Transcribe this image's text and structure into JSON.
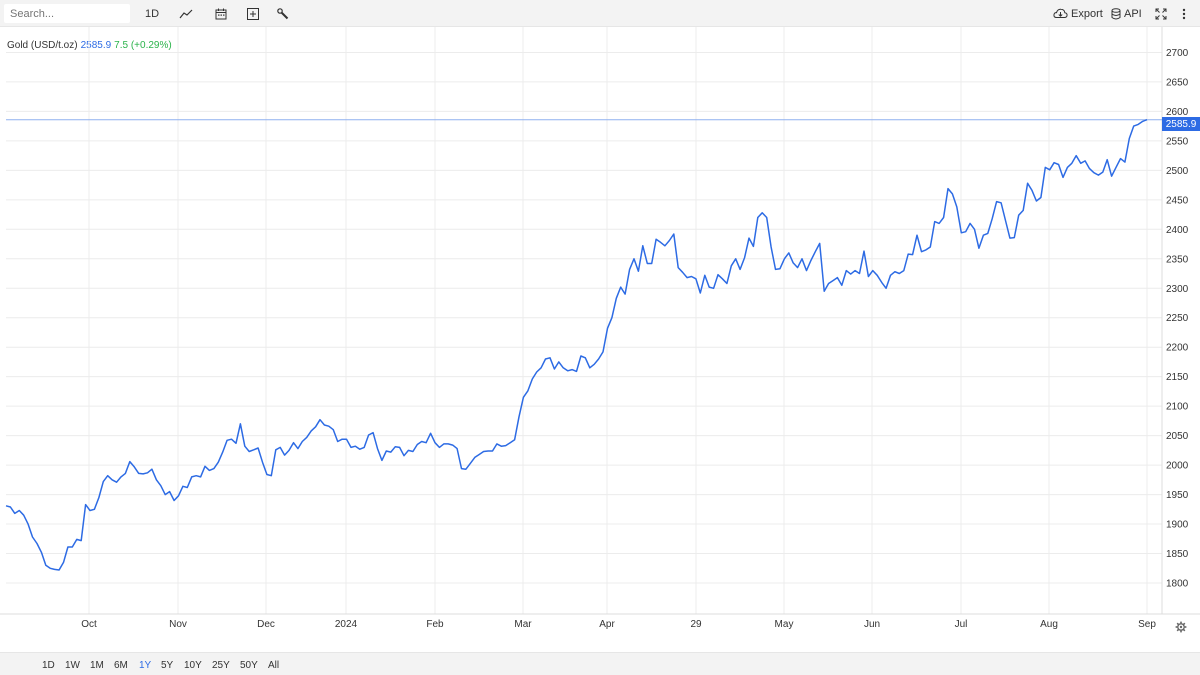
{
  "toolbar": {
    "search_placeholder": "Search...",
    "interval_label": "1D",
    "export_label": "Export",
    "api_label": "API",
    "icons": [
      "line-chart-icon",
      "calendar-icon",
      "add-indicator-icon",
      "wrench-icon",
      "cloud-download-icon",
      "database-icon",
      "fullscreen-icon",
      "more-vertical-icon"
    ]
  },
  "legend": {
    "name": "Gold (USD/t.oz)",
    "price": "2585.9",
    "change": "7.5 (+0.29%)"
  },
  "price_tag": "2585.9",
  "ranges": [
    {
      "label": "1D",
      "active": false
    },
    {
      "label": "1W",
      "active": false
    },
    {
      "label": "1M",
      "active": false
    },
    {
      "label": "6M",
      "active": false
    },
    {
      "label": "1Y",
      "active": true
    },
    {
      "label": "5Y",
      "active": false
    },
    {
      "label": "10Y",
      "active": false
    },
    {
      "label": "25Y",
      "active": false
    },
    {
      "label": "50Y",
      "active": false
    },
    {
      "label": "All",
      "active": false
    }
  ],
  "colors": {
    "line": "#2d6be4",
    "positive": "#2bb34b",
    "accent": "#2d6be4",
    "grid": "#ececec"
  },
  "chart_data": {
    "type": "line",
    "title": "Gold (USD/t.oz)",
    "ylim": [
      1770,
      2720
    ],
    "y_ticks": [
      1800,
      1850,
      1900,
      1950,
      2000,
      2050,
      2100,
      2150,
      2200,
      2250,
      2300,
      2350,
      2400,
      2450,
      2500,
      2550,
      2600,
      2650,
      2700
    ],
    "x_tick_labels": [
      "Oct",
      "Nov",
      "Dec",
      "2024",
      "Feb",
      "Mar",
      "Apr",
      "29",
      "May",
      "Jun",
      "Jul",
      "Aug",
      "Sep"
    ],
    "last_value": 2585.9,
    "grid": true,
    "series": [
      {
        "values": [
          1931,
          1929,
          1918,
          1923,
          1915,
          1900,
          1878,
          1867,
          1852,
          1830,
          1825,
          1823,
          1822,
          1835,
          1861,
          1861,
          1874,
          1872,
          1933,
          1923,
          1925,
          1945,
          1972,
          1982,
          1975,
          1971,
          1980,
          1986,
          2006,
          1997,
          1986,
          1985,
          1987,
          1993,
          1975,
          1965,
          1950,
          1955,
          1940,
          1948,
          1964,
          1962,
          1980,
          1982,
          1980,
          1998,
          1991,
          1994,
          2005,
          2022,
          2042,
          2044,
          2037,
          2070,
          2032,
          2023,
          2026,
          2029,
          2005,
          1984,
          1982,
          2026,
          2030,
          2017,
          2025,
          2038,
          2028,
          2040,
          2047,
          2058,
          2065,
          2077,
          2068,
          2066,
          2060,
          2040,
          2044,
          2044,
          2030,
          2032,
          2027,
          2030,
          2051,
          2055,
          2028,
          2008,
          2024,
          2022,
          2031,
          2030,
          2016,
          2025,
          2023,
          2035,
          2040,
          2038,
          2054,
          2038,
          2030,
          2036,
          2036,
          2034,
          2028,
          1994,
          1993,
          2003,
          2013,
          2018,
          2023,
          2024,
          2024,
          2036,
          2032,
          2033,
          2038,
          2043,
          2082,
          2115,
          2126,
          2146,
          2158,
          2165,
          2180,
          2182,
          2163,
          2175,
          2165,
          2160,
          2162,
          2159,
          2185,
          2182,
          2165,
          2171,
          2180,
          2192,
          2232,
          2250,
          2283,
          2302,
          2290,
          2332,
          2350,
          2329,
          2372,
          2342,
          2342,
          2383,
          2378,
          2372,
          2381,
          2392,
          2335,
          2327,
          2318,
          2320,
          2316,
          2292,
          2322,
          2302,
          2300,
          2323,
          2316,
          2308,
          2338,
          2350,
          2332,
          2352,
          2385,
          2371,
          2420,
          2428,
          2420,
          2370,
          2332,
          2333,
          2350,
          2360,
          2343,
          2335,
          2350,
          2330,
          2347,
          2362,
          2376,
          2295,
          2308,
          2313,
          2318,
          2305,
          2330,
          2324,
          2330,
          2325,
          2363,
          2320,
          2330,
          2322,
          2310,
          2300,
          2322,
          2328,
          2325,
          2330,
          2358,
          2357,
          2390,
          2362,
          2365,
          2370,
          2413,
          2410,
          2420,
          2469,
          2460,
          2438,
          2394,
          2396,
          2410,
          2400,
          2368,
          2390,
          2393,
          2418,
          2447,
          2445,
          2415,
          2385,
          2386,
          2424,
          2432,
          2478,
          2466,
          2448,
          2454,
          2505,
          2501,
          2513,
          2510,
          2488,
          2505,
          2512,
          2525,
          2512,
          2516,
          2503,
          2496,
          2492,
          2497,
          2518,
          2490,
          2505,
          2520,
          2514,
          2554,
          2575,
          2578,
          2583,
          2586
        ]
      }
    ]
  }
}
